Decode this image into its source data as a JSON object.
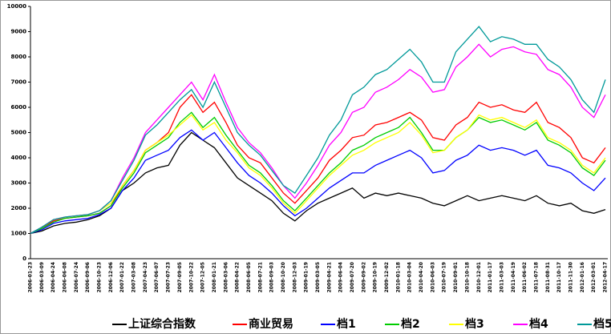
{
  "chart_data": {
    "type": "line",
    "categories": [
      "2006-01-23",
      "2006-03-09",
      "2006-04-24",
      "2006-06-08",
      "2006-07-24",
      "2006-09-06",
      "2006-10-23",
      "2006-12-06",
      "2007-01-22",
      "2007-03-08",
      "2007-04-23",
      "2007-06-07",
      "2007-07-23",
      "2007-09-05",
      "2007-10-22",
      "2007-12-05",
      "2008-01-21",
      "2008-03-06",
      "2008-04-22",
      "2008-06-05",
      "2008-07-21",
      "2008-09-03",
      "2008-10-20",
      "2008-12-03",
      "2009-01-19",
      "2009-03-05",
      "2009-04-21",
      "2009-06-04",
      "2009-07-20",
      "2009-09-02",
      "2009-10-19",
      "2009-12-02",
      "2010-01-18",
      "2010-03-04",
      "2010-04-20",
      "2010-06-03",
      "2010-07-19",
      "2010-09-01",
      "2010-10-18",
      "2010-12-01",
      "2011-01-17",
      "2011-03-03",
      "2011-04-19",
      "2011-06-02",
      "2011-07-18",
      "2011-08-31",
      "2011-10-17",
      "2011-11-30",
      "2012-01-16",
      "2012-03-01",
      "2012-04-17"
    ],
    "series": [
      {
        "name": "上证综合指数",
        "color": "#000000",
        "values": [
          1000,
          1100,
          1300,
          1400,
          1450,
          1550,
          1700,
          2000,
          2700,
          3000,
          3400,
          3600,
          3700,
          4500,
          5000,
          4700,
          4400,
          3800,
          3200,
          2900,
          2600,
          2300,
          1800,
          1500,
          1900,
          2200,
          2400,
          2600,
          2800,
          2400,
          2600,
          2500,
          2600,
          2500,
          2400,
          2200,
          2100,
          2300,
          2500,
          2300,
          2400,
          2500,
          2400,
          2300,
          2500,
          2200,
          2100,
          2200,
          1900,
          1800,
          1950
        ]
      },
      {
        "name": "商业贸易",
        "color": "#ff0000",
        "values": [
          1000,
          1200,
          1500,
          1600,
          1650,
          1700,
          1800,
          2100,
          2900,
          3500,
          4300,
          4600,
          5000,
          6000,
          6500,
          5800,
          6200,
          5400,
          4500,
          4000,
          3800,
          3200,
          2600,
          2200,
          2700,
          3200,
          3900,
          4300,
          4800,
          4900,
          5300,
          5400,
          5600,
          5800,
          5500,
          4800,
          4700,
          5300,
          5600,
          6200,
          6000,
          6100,
          5900,
          5800,
          6200,
          5400,
          5200,
          4800,
          4000,
          3800,
          4400
        ]
      },
      {
        "name": "档1",
        "color": "#0000ff",
        "values": [
          1000,
          1150,
          1400,
          1500,
          1550,
          1600,
          1750,
          2000,
          2700,
          3200,
          3900,
          4100,
          4300,
          4800,
          5100,
          4700,
          5000,
          4400,
          3800,
          3300,
          3000,
          2600,
          2100,
          1700,
          2000,
          2400,
          2800,
          3100,
          3400,
          3400,
          3700,
          3900,
          4100,
          4300,
          4000,
          3400,
          3500,
          3900,
          4100,
          4500,
          4300,
          4400,
          4300,
          4100,
          4300,
          3700,
          3600,
          3400,
          3000,
          2700,
          3200
        ]
      },
      {
        "name": "档2",
        "color": "#00cc00",
        "values": [
          1000,
          1200,
          1450,
          1600,
          1650,
          1700,
          1800,
          2100,
          2800,
          3400,
          4200,
          4500,
          4800,
          5400,
          5800,
          5200,
          5600,
          4900,
          4300,
          3700,
          3400,
          2900,
          2300,
          1900,
          2400,
          2900,
          3400,
          3800,
          4300,
          4500,
          4800,
          5000,
          5200,
          5600,
          5000,
          4300,
          4300,
          4800,
          5100,
          5600,
          5400,
          5500,
          5300,
          5100,
          5400,
          4700,
          4500,
          4200,
          3600,
          3300,
          3900
        ]
      },
      {
        "name": "档3",
        "color": "#ffff00",
        "values": [
          1000,
          1250,
          1550,
          1650,
          1700,
          1750,
          1900,
          2200,
          2900,
          3500,
          4300,
          4600,
          4900,
          5300,
          5700,
          5100,
          5400,
          4700,
          4200,
          3600,
          3300,
          2800,
          2200,
          1800,
          2300,
          2800,
          3300,
          3700,
          4100,
          4300,
          4600,
          4800,
          5000,
          5400,
          4900,
          4200,
          4300,
          4800,
          5100,
          5700,
          5500,
          5600,
          5400,
          5200,
          5500,
          4800,
          4600,
          4300,
          3700,
          3400,
          4000
        ]
      },
      {
        "name": "档4",
        "color": "#ff00ff",
        "values": [
          1000,
          1250,
          1550,
          1650,
          1700,
          1750,
          1900,
          2300,
          3200,
          4000,
          5000,
          5500,
          6000,
          6500,
          7000,
          6300,
          7300,
          6200,
          5200,
          4600,
          4200,
          3600,
          2900,
          2400,
          3000,
          3700,
          4500,
          5000,
          5800,
          6000,
          6600,
          6800,
          7100,
          7500,
          7200,
          6600,
          6700,
          7600,
          8000,
          8500,
          8000,
          8300,
          8400,
          8200,
          8100,
          7500,
          7300,
          6800,
          6000,
          5600,
          6500
        ]
      },
      {
        "name": "档5",
        "color": "#009999",
        "values": [
          1000,
          1250,
          1550,
          1650,
          1700,
          1750,
          1900,
          2300,
          3100,
          3900,
          4900,
          5300,
          5800,
          6300,
          6700,
          6000,
          7000,
          6000,
          5000,
          4500,
          4100,
          3500,
          2900,
          2600,
          3300,
          4000,
          4900,
          5500,
          6500,
          6800,
          7300,
          7500,
          7900,
          8300,
          7800,
          7000,
          7000,
          8200,
          8700,
          9200,
          8600,
          8800,
          8700,
          8500,
          8500,
          7900,
          7600,
          7100,
          6300,
          5800,
          7100
        ]
      }
    ],
    "ylim": [
      0,
      10000
    ],
    "yticks": [
      0,
      1000,
      2000,
      3000,
      4000,
      5000,
      6000,
      7000,
      8000,
      9000,
      10000
    ],
    "grid": false
  }
}
